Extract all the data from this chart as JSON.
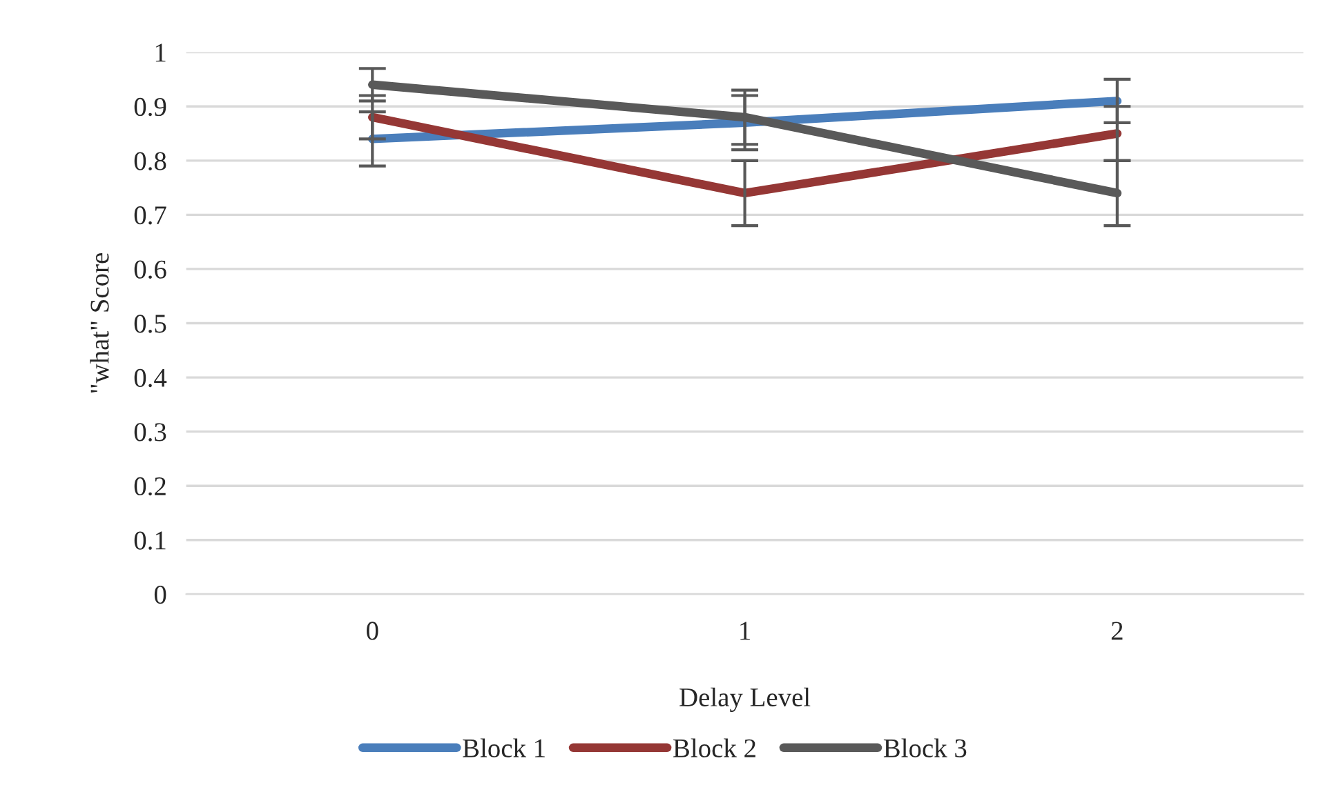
{
  "chart_data": {
    "type": "line",
    "xlabel": "Delay Level",
    "ylabel": "\"what\" Score",
    "categories": [
      "0",
      "1",
      "2"
    ],
    "series": [
      {
        "name": "Block 1",
        "color": "#4a7ebb",
        "values": [
          0.84,
          0.87,
          0.91
        ],
        "errors": [
          0.05,
          0.05,
          0.04
        ]
      },
      {
        "name": "Block 2",
        "color": "#953735",
        "values": [
          0.88,
          0.74,
          0.85
        ],
        "errors": [
          0.04,
          0.06,
          0.05
        ]
      },
      {
        "name": "Block 3",
        "color": "#595959",
        "values": [
          0.94,
          0.88,
          0.74
        ],
        "errors": [
          0.03,
          0.05,
          0.06
        ]
      }
    ],
    "ylim": [
      0,
      1
    ],
    "yticks": [
      0,
      0.1,
      0.2,
      0.3,
      0.4,
      0.5,
      0.6,
      0.7,
      0.8,
      0.9,
      1
    ],
    "grid": "y",
    "legend": "bottom",
    "marker": "none",
    "line_style": "solid"
  }
}
